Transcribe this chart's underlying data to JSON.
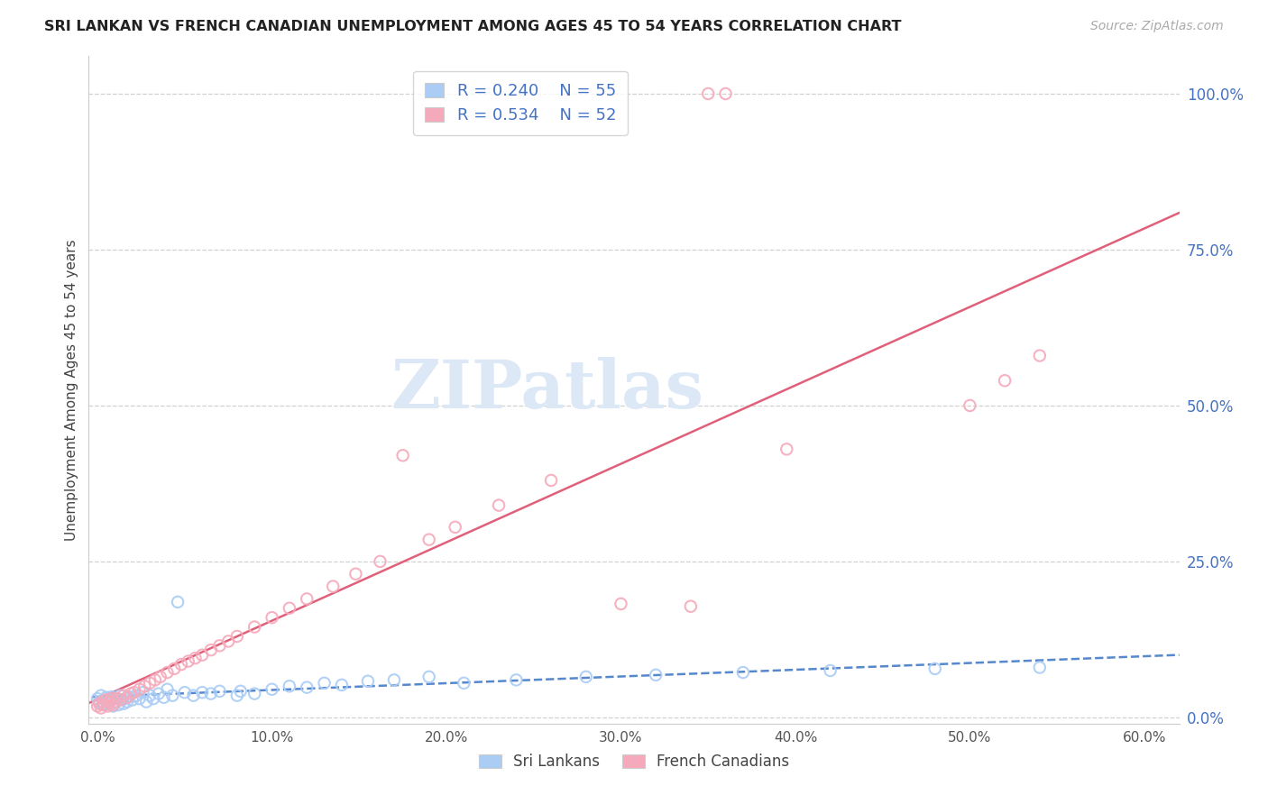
{
  "title": "SRI LANKAN VS FRENCH CANADIAN UNEMPLOYMENT AMONG AGES 45 TO 54 YEARS CORRELATION CHART",
  "source": "Source: ZipAtlas.com",
  "ylabel": "Unemployment Among Ages 45 to 54 years",
  "x_tick_labels": [
    "0.0%",
    "10.0%",
    "20.0%",
    "30.0%",
    "40.0%",
    "50.0%",
    "60.0%"
  ],
  "y_tick_labels": [
    "0.0%",
    "25.0%",
    "50.0%",
    "75.0%",
    "100.0%"
  ],
  "x_tick_vals": [
    0.0,
    0.1,
    0.2,
    0.3,
    0.4,
    0.5,
    0.6
  ],
  "y_tick_vals": [
    0.0,
    0.25,
    0.5,
    0.75,
    1.0
  ],
  "xlim": [
    -0.005,
    0.62
  ],
  "ylim": [
    -0.01,
    1.06
  ],
  "legend_sri_r": "0.240",
  "legend_sri_n": "55",
  "legend_fc_r": "0.534",
  "legend_fc_n": "52",
  "sri_color": "#aaccf5",
  "fc_color": "#f5aabb",
  "sri_line_color": "#5588cc",
  "fc_line_color": "#e0607a",
  "watermark_text": "ZIPatlas",
  "watermark_color": "#dce8f5",
  "background_color": "#ffffff",
  "grid_color": "#cccccc",
  "bottom_legend_labels": [
    "Sri Lankans",
    "French Canadians"
  ],
  "sri_x": [
    0.0,
    0.001,
    0.002,
    0.003,
    0.004,
    0.005,
    0.006,
    0.007,
    0.008,
    0.009,
    0.01,
    0.011,
    0.012,
    0.013,
    0.014,
    0.015,
    0.016,
    0.017,
    0.018,
    0.02,
    0.022,
    0.024,
    0.026,
    0.028,
    0.03,
    0.032,
    0.035,
    0.038,
    0.04,
    0.043,
    0.046,
    0.05,
    0.055,
    0.06,
    0.065,
    0.07,
    0.08,
    0.082,
    0.09,
    0.1,
    0.11,
    0.12,
    0.13,
    0.14,
    0.155,
    0.17,
    0.19,
    0.21,
    0.24,
    0.28,
    0.32,
    0.37,
    0.42,
    0.48,
    0.54
  ],
  "sri_y": [
    0.03,
    0.025,
    0.035,
    0.02,
    0.028,
    0.032,
    0.022,
    0.027,
    0.033,
    0.018,
    0.025,
    0.03,
    0.02,
    0.035,
    0.028,
    0.022,
    0.03,
    0.025,
    0.033,
    0.028,
    0.035,
    0.03,
    0.04,
    0.025,
    0.035,
    0.03,
    0.038,
    0.032,
    0.045,
    0.035,
    0.185,
    0.04,
    0.035,
    0.04,
    0.038,
    0.042,
    0.035,
    0.042,
    0.038,
    0.045,
    0.05,
    0.048,
    0.055,
    0.052,
    0.058,
    0.06,
    0.065,
    0.055,
    0.06,
    0.065,
    0.068,
    0.072,
    0.075,
    0.078,
    0.08
  ],
  "fc_x": [
    0.0,
    0.001,
    0.002,
    0.003,
    0.004,
    0.005,
    0.006,
    0.007,
    0.008,
    0.009,
    0.01,
    0.011,
    0.013,
    0.015,
    0.017,
    0.019,
    0.021,
    0.024,
    0.027,
    0.03,
    0.033,
    0.036,
    0.04,
    0.044,
    0.048,
    0.052,
    0.056,
    0.06,
    0.065,
    0.07,
    0.075,
    0.08,
    0.09,
    0.1,
    0.11,
    0.12,
    0.135,
    0.148,
    0.162,
    0.175,
    0.19,
    0.205,
    0.23,
    0.26,
    0.3,
    0.34,
    0.36,
    0.395,
    0.5,
    0.52,
    0.35,
    0.54
  ],
  "fc_y": [
    0.018,
    0.022,
    0.015,
    0.025,
    0.02,
    0.028,
    0.018,
    0.024,
    0.03,
    0.02,
    0.025,
    0.03,
    0.028,
    0.035,
    0.032,
    0.038,
    0.04,
    0.045,
    0.05,
    0.055,
    0.06,
    0.065,
    0.072,
    0.078,
    0.085,
    0.09,
    0.095,
    0.1,
    0.108,
    0.115,
    0.122,
    0.13,
    0.145,
    0.16,
    0.175,
    0.19,
    0.21,
    0.23,
    0.25,
    0.42,
    0.285,
    0.305,
    0.34,
    0.38,
    0.182,
    0.178,
    1.0,
    0.43,
    0.5,
    0.54,
    1.0,
    0.58
  ]
}
